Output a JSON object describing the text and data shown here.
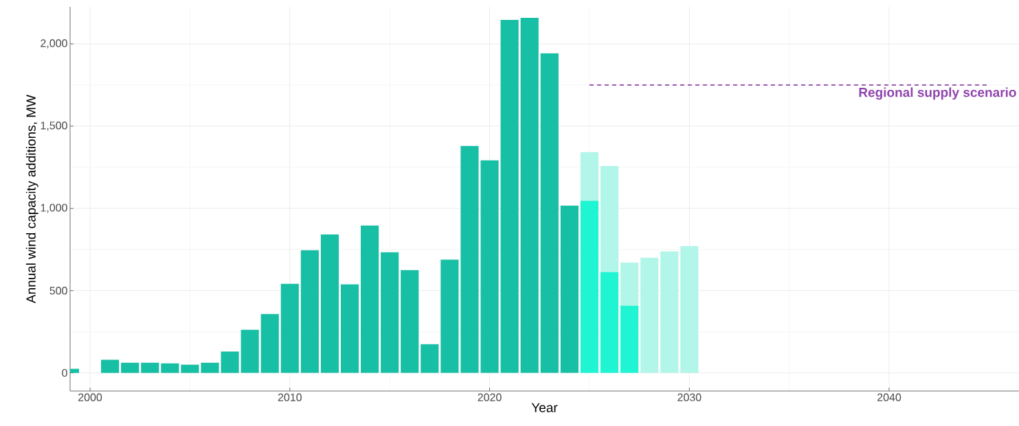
{
  "chart_data": {
    "type": "bar",
    "xlabel": "Year",
    "ylabel": "Annual wind capacity additions, MW",
    "xlim": [
      1999.0,
      2046.5
    ],
    "xticks": [
      2000,
      2010,
      2020,
      2030,
      2040
    ],
    "ylim": [
      -110,
      2225
    ],
    "yticks": [
      0,
      500,
      {
        "value": 1000,
        "label": "1,000"
      },
      {
        "value": 1500,
        "label": "1,500"
      },
      {
        "value": 2000,
        "label": "2,000"
      }
    ],
    "grid": true,
    "series": [
      {
        "color": "#17bfa5",
        "x": [
          1999,
          2001,
          2002,
          2003,
          2004,
          2005,
          2006,
          2007,
          2008,
          2009,
          2010,
          2011,
          2012,
          2013,
          2014,
          2015,
          2016,
          2017,
          2018,
          2019,
          2020,
          2021,
          2022,
          2023,
          2024
        ],
        "values": [
          25,
          80,
          62,
          62,
          58,
          50,
          62,
          130,
          262,
          358,
          542,
          746,
          842,
          538,
          896,
          733,
          625,
          175,
          688,
          1380,
          1292,
          2146,
          2158,
          1942,
          1017
        ]
      },
      {
        "color": "#b2f5e9",
        "x": [
          2025,
          2026,
          2027,
          2028,
          2029,
          2030
        ],
        "values": [
          1342,
          1258,
          671,
          700,
          738,
          771
        ]
      },
      {
        "color": "#1ff5d2",
        "x": [
          2025,
          2026,
          2027
        ],
        "values": [
          1046,
          612,
          408
        ]
      },
      {
        "type": "line",
        "name": "Regional supply scenario",
        "color": "#8e44ad",
        "line_style": "dashed",
        "marker": "none",
        "x": [
          2025,
          2045
        ],
        "values": [
          1750,
          1750
        ]
      }
    ]
  }
}
